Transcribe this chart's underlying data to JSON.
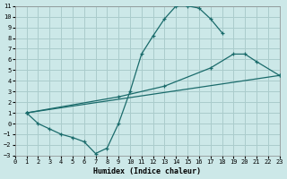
{
  "xlabel": "Humidex (Indice chaleur)",
  "bg_color": "#cce8e8",
  "grid_color": "#aacccc",
  "line_color": "#1a6b6b",
  "xlim": [
    0,
    23
  ],
  "ylim": [
    -3,
    11
  ],
  "xticks": [
    0,
    1,
    2,
    3,
    4,
    5,
    6,
    7,
    8,
    9,
    10,
    11,
    12,
    13,
    14,
    15,
    16,
    17,
    18,
    19,
    20,
    21,
    22,
    23
  ],
  "yticks": [
    -3,
    -2,
    -1,
    0,
    1,
    2,
    3,
    4,
    5,
    6,
    7,
    8,
    9,
    10,
    11
  ],
  "curve1_x": [
    1,
    2,
    3,
    4,
    5,
    6,
    7,
    8,
    9,
    10,
    11,
    12,
    13,
    14,
    15,
    16,
    17,
    18
  ],
  "curve1_y": [
    1,
    0,
    -0.5,
    -1.0,
    -1.3,
    -1.7,
    -2.8,
    -2.3,
    0.0,
    3.0,
    6.5,
    8.2,
    9.8,
    11.0,
    11.0,
    10.8,
    9.8,
    8.5
  ],
  "curve2_x": [
    1,
    23
  ],
  "curve2_y": [
    1,
    4.5
  ],
  "curve3_x": [
    1,
    9,
    13,
    17,
    19,
    20,
    21,
    23
  ],
  "curve3_y": [
    1,
    2.5,
    3.5,
    5.2,
    6.5,
    6.5,
    5.8,
    4.5
  ]
}
